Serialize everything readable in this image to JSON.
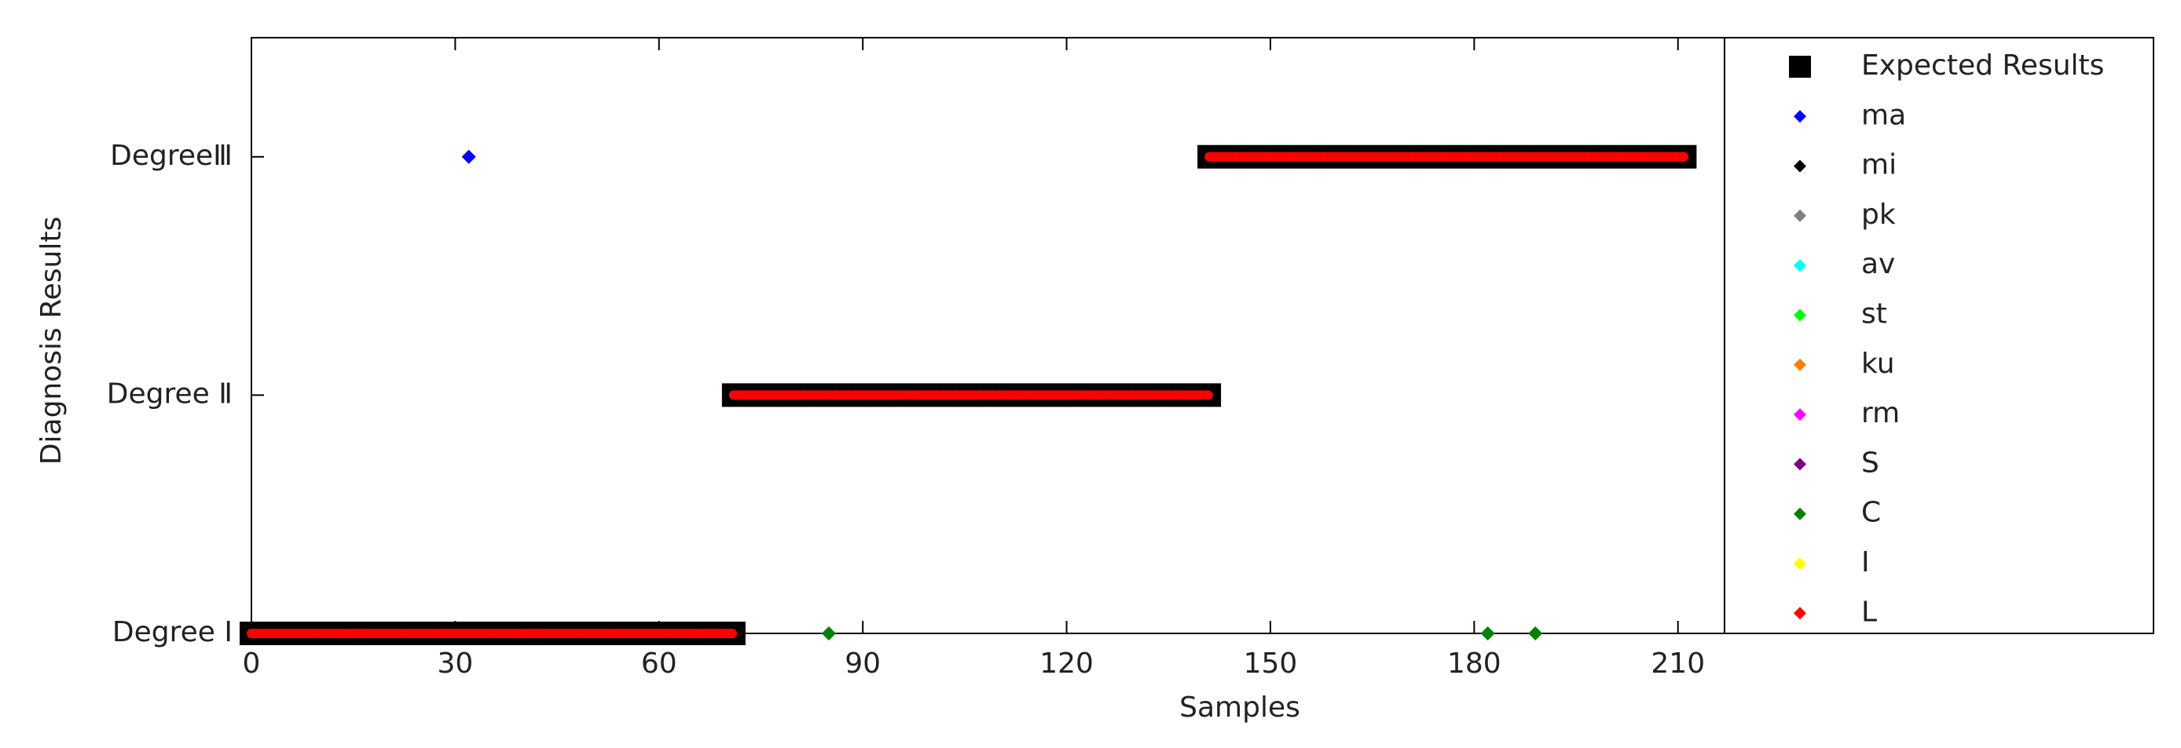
{
  "chart_data": {
    "type": "scatter",
    "xlabel": "Samples",
    "ylabel": "Diagnosis Results",
    "xlim": [
      0,
      280
    ],
    "xticks": [
      0,
      30,
      60,
      90,
      120,
      150,
      180,
      210
    ],
    "ylim": [
      1,
      3.5
    ],
    "yticks": [
      {
        "value": 1,
        "label": "Degree Ⅰ"
      },
      {
        "value": 2,
        "label": "Degree Ⅱ"
      },
      {
        "value": 3,
        "label": "DegreeⅢ"
      }
    ],
    "series": [
      {
        "name": "Expected Results",
        "color": "#000000",
        "x": [
          0,
          71,
          71,
          71,
          141,
          141,
          141,
          211
        ],
        "values": [
          1,
          1,
          null,
          2,
          2,
          null,
          3,
          3
        ]
      },
      {
        "name": "ma",
        "color": "#0000ff",
        "x": [
          32
        ],
        "values": [
          3
        ]
      },
      {
        "name": "mi",
        "color": "#000000",
        "x": [],
        "values": []
      },
      {
        "name": "pk",
        "color": "#808080",
        "x": [],
        "values": []
      },
      {
        "name": "av",
        "color": "#00ffff",
        "x": [],
        "values": []
      },
      {
        "name": "st",
        "color": "#00ff00",
        "x": [],
        "values": []
      },
      {
        "name": "ku",
        "color": "#ff8000",
        "x": [],
        "values": []
      },
      {
        "name": "rm",
        "color": "#ff00ff",
        "x": [],
        "values": []
      },
      {
        "name": "S",
        "color": "#800080",
        "x": [],
        "values": []
      },
      {
        "name": "C",
        "color": "#008000",
        "x": [
          85,
          182,
          189
        ],
        "values": [
          1,
          1,
          1
        ]
      },
      {
        "name": "I",
        "color": "#ffff00",
        "x": [],
        "values": []
      },
      {
        "name": "L",
        "color": "#ff0000",
        "x": [
          0,
          71,
          71,
          71,
          141,
          141,
          141,
          211
        ],
        "values": [
          1,
          1,
          null,
          2,
          2,
          null,
          3,
          3
        ]
      }
    ]
  }
}
